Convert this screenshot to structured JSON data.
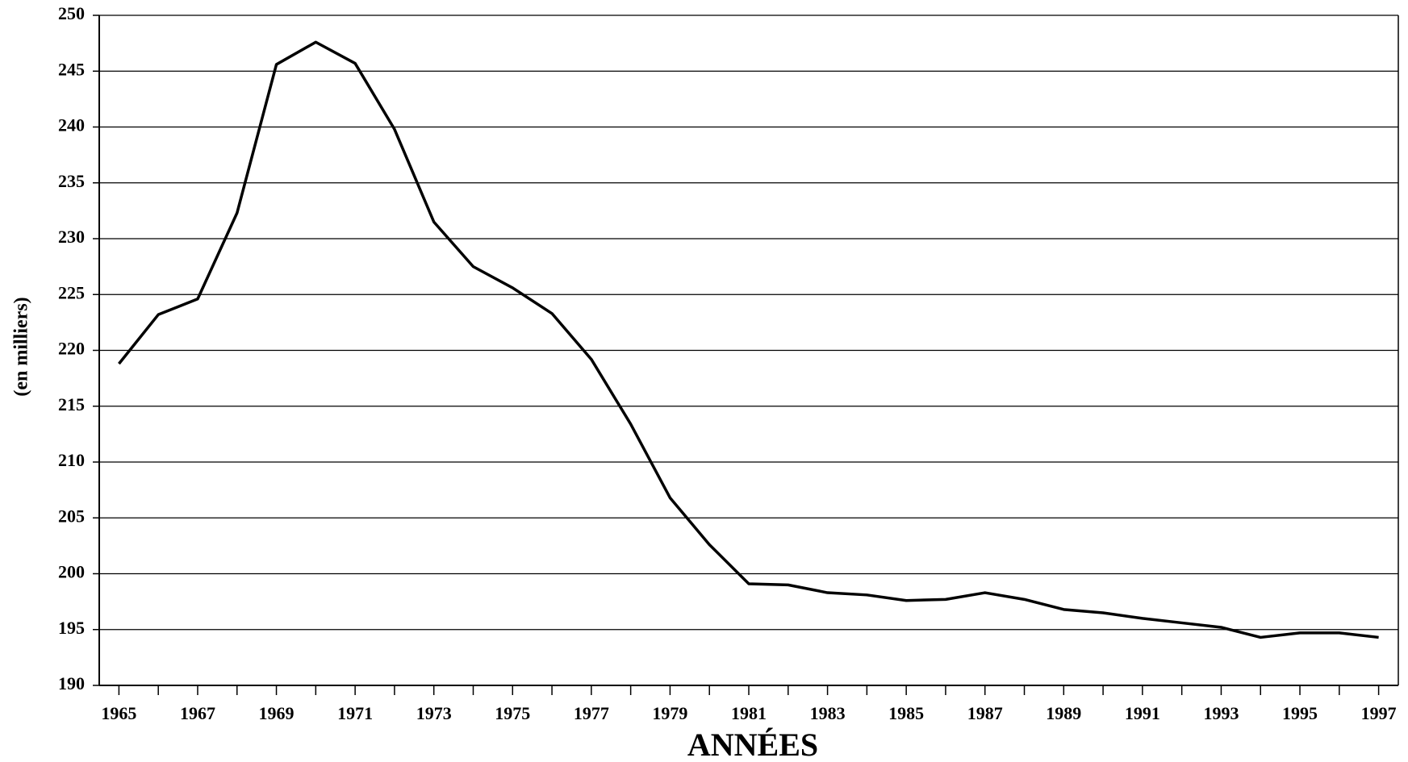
{
  "chart_data": {
    "type": "line",
    "x_label": "ANNÉES",
    "y_label": "(en milliers)",
    "x": [
      1965,
      1966,
      1967,
      1968,
      1969,
      1970,
      1971,
      1972,
      1973,
      1974,
      1975,
      1976,
      1977,
      1978,
      1979,
      1980,
      1981,
      1982,
      1983,
      1984,
      1985,
      1986,
      1987,
      1988,
      1989,
      1990,
      1991,
      1992,
      1993,
      1994,
      1995,
      1996,
      1997
    ],
    "series": [
      {
        "color": "#000000",
        "values": [
          218.8,
          223.2,
          224.6,
          232.3,
          245.6,
          247.6,
          245.7,
          239.8,
          231.5,
          227.5,
          225.6,
          223.3,
          219.2,
          213.4,
          206.8,
          202.6,
          199.1,
          199.0,
          198.3,
          198.1,
          197.6,
          197.7,
          198.3,
          197.7,
          196.8,
          196.5,
          196.0,
          195.6,
          195.2,
          194.3,
          194.7,
          194.7,
          194.3
        ]
      }
    ],
    "xlim": [
      1964.5,
      1997.5
    ],
    "xticks": [
      1965,
      1967,
      1969,
      1971,
      1973,
      1975,
      1977,
      1979,
      1981,
      1983,
      1985,
      1987,
      1989,
      1991,
      1993,
      1995,
      1997
    ],
    "xminorticks": [
      1966,
      1968,
      1970,
      1972,
      1974,
      1976,
      1978,
      1980,
      1982,
      1984,
      1986,
      1988,
      1990,
      1992,
      1994,
      1996
    ],
    "ylim": [
      190,
      250
    ],
    "yticks": [
      190,
      195,
      200,
      205,
      210,
      215,
      220,
      225,
      230,
      235,
      240,
      245,
      250
    ],
    "grid": true
  }
}
